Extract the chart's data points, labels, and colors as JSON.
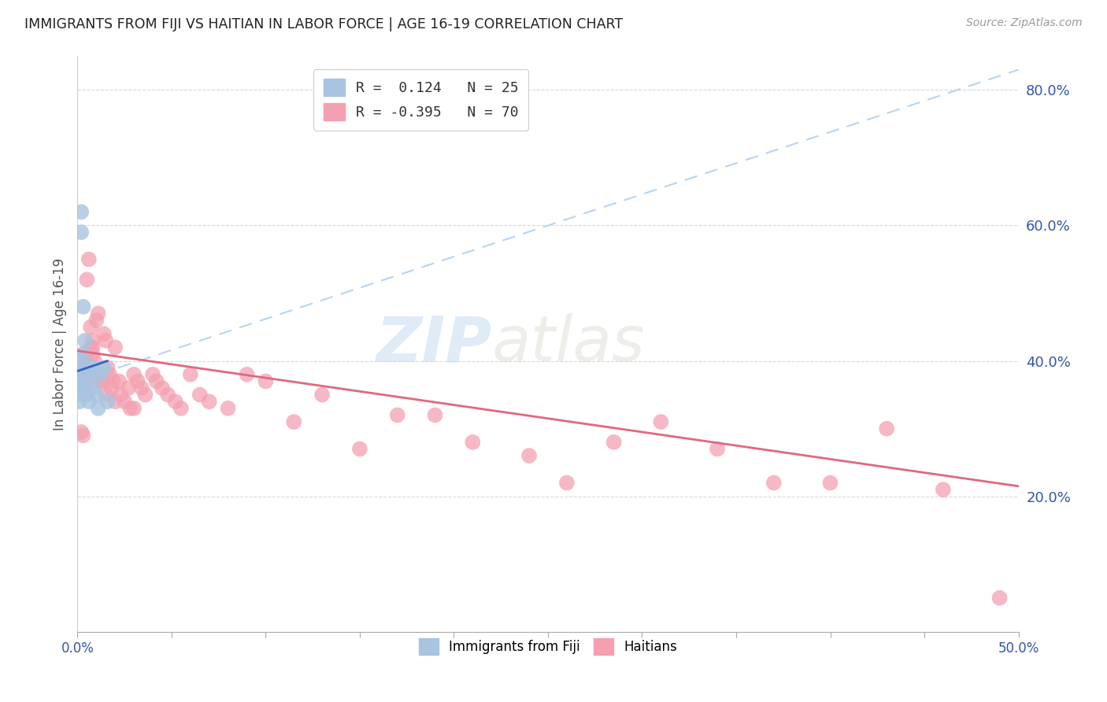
{
  "title": "IMMIGRANTS FROM FIJI VS HAITIAN IN LABOR FORCE | AGE 16-19 CORRELATION CHART",
  "source": "Source: ZipAtlas.com",
  "ylabel": "In Labor Force | Age 16-19",
  "xlim": [
    0.0,
    0.5
  ],
  "ylim": [
    0.0,
    0.85
  ],
  "yticks_right": [
    0.2,
    0.4,
    0.6,
    0.8
  ],
  "ytick_labels_right": [
    "20.0%",
    "40.0%",
    "60.0%",
    "80.0%"
  ],
  "xtick_positions": [
    0.0,
    0.05,
    0.1,
    0.15,
    0.2,
    0.25,
    0.3,
    0.35,
    0.4,
    0.45,
    0.5
  ],
  "grid_color": "#d8d8d8",
  "background_color": "#ffffff",
  "fiji_color": "#a8c4e0",
  "haitian_color": "#f4a0b0",
  "fiji_R": 0.124,
  "fiji_N": 25,
  "haitian_R": -0.395,
  "haitian_N": 70,
  "fiji_line_color": "#3366bb",
  "haitian_line_color": "#e06880",
  "trend_dashed_color": "#b8d4ee",
  "watermark_zip": "ZIP",
  "watermark_atlas": "atlas",
  "fiji_points_x": [
    0.001,
    0.001,
    0.001,
    0.001,
    0.001,
    0.001,
    0.002,
    0.002,
    0.003,
    0.003,
    0.003,
    0.004,
    0.004,
    0.004,
    0.005,
    0.006,
    0.006,
    0.007,
    0.008,
    0.009,
    0.01,
    0.011,
    0.012,
    0.014,
    0.016
  ],
  "fiji_points_y": [
    0.38,
    0.4,
    0.36,
    0.35,
    0.37,
    0.34,
    0.62,
    0.59,
    0.48,
    0.41,
    0.39,
    0.43,
    0.37,
    0.36,
    0.35,
    0.39,
    0.34,
    0.38,
    0.36,
    0.39,
    0.35,
    0.33,
    0.38,
    0.39,
    0.34
  ],
  "haitian_points_x": [
    0.001,
    0.002,
    0.003,
    0.003,
    0.004,
    0.004,
    0.005,
    0.005,
    0.006,
    0.007,
    0.007,
    0.008,
    0.008,
    0.009,
    0.01,
    0.011,
    0.012,
    0.013,
    0.014,
    0.015,
    0.016,
    0.017,
    0.018,
    0.019,
    0.02,
    0.022,
    0.023,
    0.025,
    0.027,
    0.028,
    0.03,
    0.032,
    0.034,
    0.036,
    0.04,
    0.042,
    0.045,
    0.048,
    0.052,
    0.055,
    0.06,
    0.065,
    0.07,
    0.08,
    0.09,
    0.1,
    0.115,
    0.13,
    0.15,
    0.17,
    0.19,
    0.21,
    0.24,
    0.26,
    0.285,
    0.31,
    0.34,
    0.37,
    0.4,
    0.43,
    0.46,
    0.49,
    0.005,
    0.006,
    0.008,
    0.01,
    0.012,
    0.015,
    0.02,
    0.03
  ],
  "haitian_points_y": [
    0.38,
    0.295,
    0.29,
    0.41,
    0.395,
    0.38,
    0.4,
    0.38,
    0.37,
    0.45,
    0.42,
    0.41,
    0.43,
    0.4,
    0.46,
    0.47,
    0.38,
    0.37,
    0.44,
    0.43,
    0.39,
    0.38,
    0.36,
    0.37,
    0.42,
    0.37,
    0.35,
    0.34,
    0.36,
    0.33,
    0.38,
    0.37,
    0.36,
    0.35,
    0.38,
    0.37,
    0.36,
    0.35,
    0.34,
    0.33,
    0.38,
    0.35,
    0.34,
    0.33,
    0.38,
    0.37,
    0.31,
    0.35,
    0.27,
    0.32,
    0.32,
    0.28,
    0.26,
    0.22,
    0.28,
    0.31,
    0.27,
    0.22,
    0.22,
    0.3,
    0.21,
    0.05,
    0.52,
    0.55,
    0.42,
    0.38,
    0.37,
    0.35,
    0.34,
    0.33
  ],
  "dashed_line_x": [
    0.0,
    0.5
  ],
  "dashed_line_y": [
    0.37,
    0.83
  ],
  "fiji_trend_x": [
    0.0,
    0.016
  ],
  "fiji_trend_y": [
    0.385,
    0.4
  ],
  "haitian_trend_x": [
    0.0,
    0.5
  ],
  "haitian_trend_y": [
    0.415,
    0.215
  ]
}
